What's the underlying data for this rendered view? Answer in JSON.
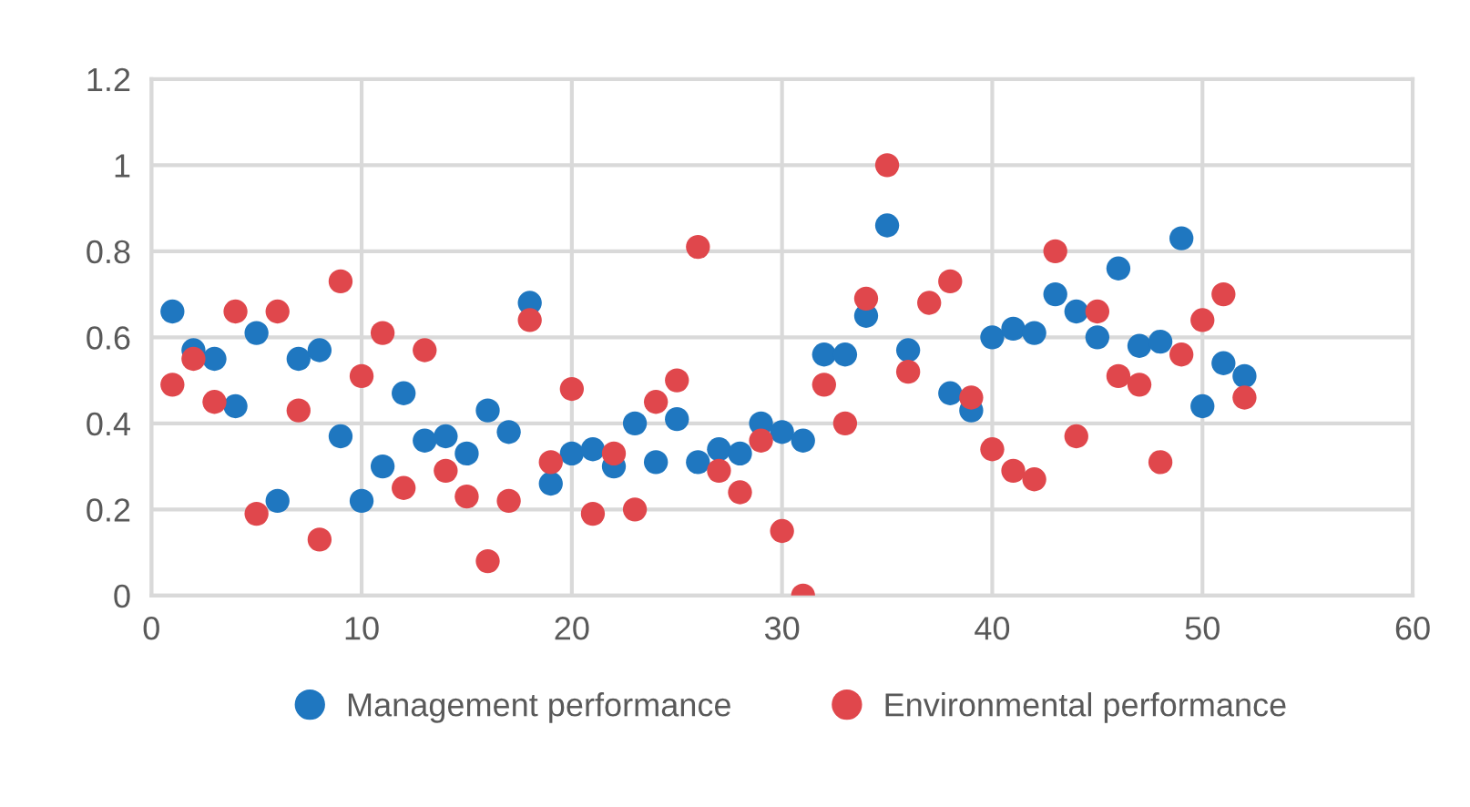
{
  "chart_data": {
    "type": "scatter",
    "marker": "circle",
    "grid": true,
    "legend": "bottom",
    "xlim": [
      0,
      60
    ],
    "xticks": [
      0,
      10,
      20,
      30,
      40,
      50,
      60
    ],
    "ylim": [
      0,
      1.2
    ],
    "yticks": [
      0,
      {
        "value": 0.2,
        "label": "0.2"
      },
      {
        "value": 0.4,
        "label": "0.4"
      },
      {
        "value": 0.6,
        "label": "0.6"
      },
      {
        "value": 0.8,
        "label": "0.8"
      },
      1,
      {
        "value": 1.2,
        "label": "1.2"
      }
    ],
    "x": [
      1,
      2,
      3,
      4,
      5,
      6,
      7,
      8,
      9,
      10,
      11,
      12,
      13,
      14,
      15,
      16,
      17,
      18,
      19,
      20,
      21,
      22,
      23,
      24,
      25,
      26,
      27,
      28,
      29,
      30,
      31,
      32,
      33,
      34,
      35,
      36,
      37,
      38,
      39,
      40,
      41,
      42,
      43,
      44,
      45,
      46,
      47,
      48,
      49,
      50,
      51,
      52
    ],
    "series": [
      {
        "name": "Management performance",
        "color": "#1f77c0",
        "values": [
          0.66,
          0.57,
          0.55,
          0.44,
          0.61,
          0.22,
          0.55,
          0.57,
          0.37,
          0.22,
          0.3,
          0.47,
          0.36,
          0.37,
          0.33,
          0.43,
          0.38,
          0.68,
          0.26,
          0.33,
          0.34,
          0.3,
          0.4,
          0.31,
          0.41,
          0.31,
          0.34,
          0.33,
          0.4,
          0.38,
          0.36,
          0.56,
          0.56,
          0.65,
          0.86,
          0.57,
          null,
          0.47,
          0.43,
          0.6,
          0.62,
          0.61,
          0.7,
          0.66,
          0.6,
          0.76,
          0.58,
          0.59,
          0.83,
          0.44,
          0.54,
          0.51
        ]
      },
      {
        "name": "Environmental performance",
        "color": "#e0474c",
        "values": [
          0.49,
          0.55,
          0.45,
          0.66,
          0.19,
          0.66,
          0.43,
          0.13,
          0.73,
          0.51,
          0.61,
          0.25,
          0.57,
          0.29,
          0.23,
          0.08,
          0.22,
          0.64,
          0.31,
          0.48,
          0.19,
          0.33,
          0.2,
          0.45,
          0.5,
          0.81,
          0.29,
          0.24,
          0.36,
          0.15,
          0.0,
          0.49,
          0.4,
          0.69,
          1.0,
          0.52,
          0.68,
          0.73,
          0.46,
          0.34,
          0.29,
          0.27,
          0.8,
          0.37,
          0.66,
          0.51,
          0.49,
          0.31,
          0.56,
          0.64,
          0.7,
          0.46
        ]
      }
    ]
  }
}
